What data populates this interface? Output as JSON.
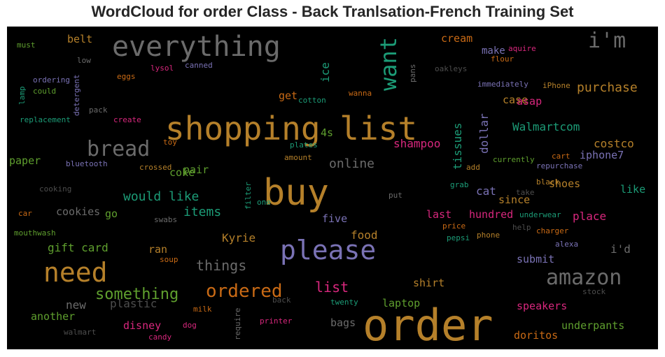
{
  "chart_data": {
    "type": "wordcloud",
    "title": "WordCloud for order Class - Back Tranlsation-French Training Set",
    "background": "#000000",
    "colors": {
      "orange": "#b5802a",
      "gray": "#6b6b6b",
      "purple": "#7a72b5",
      "green": "#5f9f2e",
      "teal": "#1c9c77",
      "pink": "#d8277d",
      "darkorange": "#c96a15",
      "darkgray": "#4d4d4d"
    },
    "words": [
      {
        "text": "order",
        "color": "orange"
      },
      {
        "text": "shopping list",
        "color": "orange"
      },
      {
        "text": "buy",
        "color": "orange"
      },
      {
        "text": "everything",
        "color": "gray"
      },
      {
        "text": "need",
        "color": "orange"
      },
      {
        "text": "please",
        "color": "purple"
      },
      {
        "text": "amazon",
        "color": "gray"
      },
      {
        "text": "i'm",
        "color": "gray"
      },
      {
        "text": "want",
        "color": "teal"
      },
      {
        "text": "bread",
        "color": "gray"
      },
      {
        "text": "ordered",
        "color": "darkorange"
      },
      {
        "text": "something",
        "color": "green"
      },
      {
        "text": "things",
        "color": "gray"
      },
      {
        "text": "list",
        "color": "pink"
      },
      {
        "text": "would like",
        "color": "teal"
      },
      {
        "text": "online",
        "color": "gray"
      },
      {
        "text": "purchase",
        "color": "orange"
      },
      {
        "text": "items",
        "color": "teal"
      },
      {
        "text": "gift card",
        "color": "green"
      },
      {
        "text": "Walmartcom",
        "color": "teal"
      },
      {
        "text": "food",
        "color": "orange"
      },
      {
        "text": "Kyrie",
        "color": "orange"
      },
      {
        "text": "plastic",
        "color": "darkgray"
      },
      {
        "text": "new",
        "color": "gray"
      },
      {
        "text": "costco",
        "color": "orange"
      },
      {
        "text": "i'd",
        "color": "gray"
      },
      {
        "text": "place",
        "color": "pink"
      },
      {
        "text": "shampoo",
        "color": "pink"
      },
      {
        "text": "dollar",
        "color": "purple"
      },
      {
        "text": "tissues",
        "color": "teal"
      },
      {
        "text": "cat",
        "color": "purple"
      },
      {
        "text": "cookies",
        "color": "gray"
      },
      {
        "text": "go",
        "color": "green"
      },
      {
        "text": "ice",
        "color": "teal"
      },
      {
        "text": "paper",
        "color": "green"
      },
      {
        "text": "belt",
        "color": "orange"
      },
      {
        "text": "iphone7",
        "color": "purple"
      },
      {
        "text": "shoes",
        "color": "orange"
      },
      {
        "text": "like",
        "color": "teal"
      },
      {
        "text": "speakers",
        "color": "pink"
      },
      {
        "text": "laptop",
        "color": "green"
      },
      {
        "text": "shirt",
        "color": "orange"
      },
      {
        "text": "disney",
        "color": "pink"
      },
      {
        "text": "underpants",
        "color": "green"
      },
      {
        "text": "doritos",
        "color": "darkorange"
      },
      {
        "text": "hundred",
        "color": "pink"
      },
      {
        "text": "last",
        "color": "pink"
      },
      {
        "text": "since",
        "color": "orange"
      },
      {
        "text": "submit",
        "color": "purple"
      },
      {
        "text": "ran",
        "color": "orange"
      },
      {
        "text": "another",
        "color": "green"
      },
      {
        "text": "bags",
        "color": "gray"
      },
      {
        "text": "five",
        "color": "purple"
      },
      {
        "text": "get",
        "color": "darkorange"
      },
      {
        "text": "case",
        "color": "orange"
      },
      {
        "text": "asap",
        "color": "pink"
      },
      {
        "text": "cream",
        "color": "darkorange"
      },
      {
        "text": "make",
        "color": "purple"
      },
      {
        "text": "coke",
        "color": "green"
      },
      {
        "text": "pair",
        "color": "green"
      },
      {
        "text": "4s",
        "color": "green"
      },
      {
        "text": "cotton",
        "color": "teal"
      },
      {
        "text": "must",
        "color": "green"
      },
      {
        "text": "low",
        "color": "gray"
      },
      {
        "text": "lysol",
        "color": "pink"
      },
      {
        "text": "canned",
        "color": "purple"
      },
      {
        "text": "eggs",
        "color": "darkorange"
      },
      {
        "text": "ordering",
        "color": "purple"
      },
      {
        "text": "could",
        "color": "green"
      },
      {
        "text": "lamp",
        "color": "teal"
      },
      {
        "text": "detergent",
        "color": "purple"
      },
      {
        "text": "pack",
        "color": "gray"
      },
      {
        "text": "replacement",
        "color": "teal"
      },
      {
        "text": "create",
        "color": "pink"
      },
      {
        "text": "toy",
        "color": "darkorange"
      },
      {
        "text": "bluetooth",
        "color": "purple"
      },
      {
        "text": "crossed",
        "color": "orange"
      },
      {
        "text": "cooking",
        "color": "darkgray"
      },
      {
        "text": "car",
        "color": "darkorange"
      },
      {
        "text": "mouthwash",
        "color": "green"
      },
      {
        "text": "filter",
        "color": "teal"
      },
      {
        "text": "one",
        "color": "teal"
      },
      {
        "text": "swabs",
        "color": "gray"
      },
      {
        "text": "soup",
        "color": "darkorange"
      },
      {
        "text": "milk",
        "color": "darkorange"
      },
      {
        "text": "require",
        "color": "gray"
      },
      {
        "text": "back",
        "color": "darkgray"
      },
      {
        "text": "dog",
        "color": "pink"
      },
      {
        "text": "printer",
        "color": "pink"
      },
      {
        "text": "twenty",
        "color": "teal"
      },
      {
        "text": "walmart",
        "color": "darkgray"
      },
      {
        "text": "candy",
        "color": "pink"
      },
      {
        "text": "wanna",
        "color": "darkorange"
      },
      {
        "text": "pans",
        "color": "gray"
      },
      {
        "text": "oakleys",
        "color": "darkgray"
      },
      {
        "text": "aquire",
        "color": "pink"
      },
      {
        "text": "flour",
        "color": "darkorange"
      },
      {
        "text": "immediately",
        "color": "purple"
      },
      {
        "text": "iPhone",
        "color": "orange"
      },
      {
        "text": "plates",
        "color": "teal"
      },
      {
        "text": "amount",
        "color": "orange"
      },
      {
        "text": "currently",
        "color": "green"
      },
      {
        "text": "add",
        "color": "orange"
      },
      {
        "text": "cart",
        "color": "darkorange"
      },
      {
        "text": "repurchase",
        "color": "purple"
      },
      {
        "text": "black",
        "color": "orange"
      },
      {
        "text": "grab",
        "color": "teal"
      },
      {
        "text": "take",
        "color": "darkgray"
      },
      {
        "text": "put",
        "color": "gray"
      },
      {
        "text": "underwear",
        "color": "teal"
      },
      {
        "text": "price",
        "color": "darkorange"
      },
      {
        "text": "help",
        "color": "darkgray"
      },
      {
        "text": "charger",
        "color": "darkorange"
      },
      {
        "text": "pepsi",
        "color": "teal"
      },
      {
        "text": "phone",
        "color": "orange"
      },
      {
        "text": "alexa",
        "color": "purple"
      },
      {
        "text": "stock",
        "color": "darkgray"
      }
    ]
  }
}
